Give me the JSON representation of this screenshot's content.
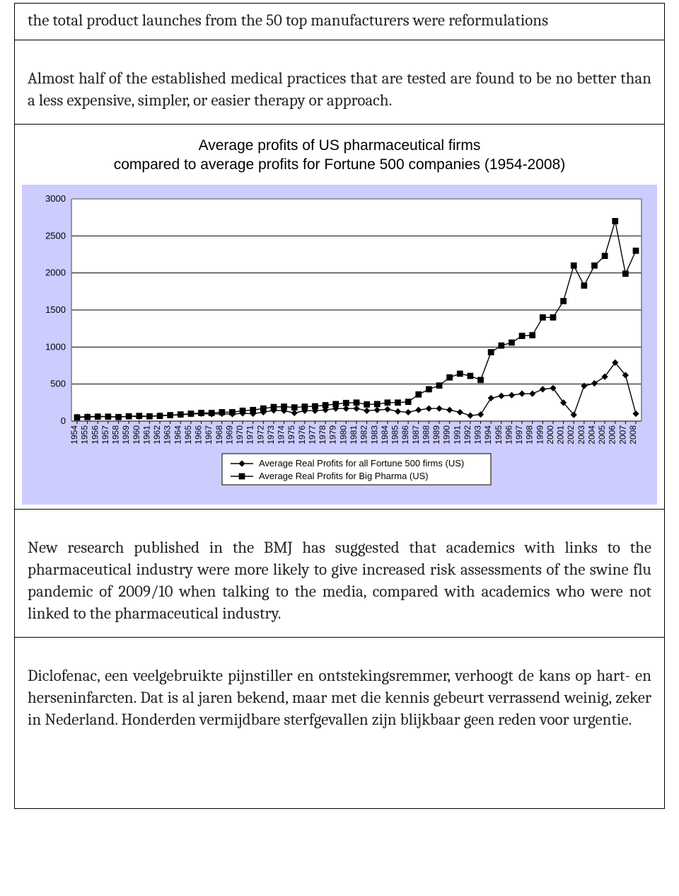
{
  "rows": {
    "r1": "the total product launches from the 50 top manufacturers were reformulations",
    "r2": "Almost half of the established medical practices that are tested are found to be no better than a less expensive, simpler, or easier therapy or approach.",
    "r4": "New research published in the BMJ has suggested that academics with links to the pharmaceutical industry were more likely to give increased risk assessments of the swine flu pandemic of 2009/10 when talking to the media, compared with academics who were not linked to the pharmaceutical industry.",
    "r5": "Diclofenac, een veelgebruikte pijnstiller en ontstekingsremmer, verhoogt de kans op hart- en herseninfarcten. Dat is al jaren bekend, maar met die kennis gebeurt verrassend weinig, zeker in Nederland. Honderden vermijdbare sterfgevallen zijn blijkbaar geen reden voor urgentie."
  },
  "chart": {
    "type": "line",
    "title_line1": "Average profits of US pharmaceutical firms",
    "title_line2": "compared to average profits for Fortune 500 companies (1954-2008)",
    "title_fontsize": 21,
    "background_color": "#ccccff",
    "plot_background": "#ffffff",
    "grid_color": "#000000",
    "line_color": "#000000",
    "label_fontsize_y": 13,
    "label_fontsize_x": 12,
    "legend_fontsize": 13,
    "ylim": [
      0,
      3000
    ],
    "ytick_step": 500,
    "yticks": [
      0,
      500,
      1000,
      1500,
      2000,
      2500,
      3000
    ],
    "x_years": [
      1954,
      1955,
      1956,
      1957,
      1958,
      1959,
      1960,
      1961,
      1962,
      1963,
      1964,
      1965,
      1966,
      1967,
      1968,
      1969,
      1970,
      1971,
      1972,
      1973,
      1974,
      1975,
      1976,
      1977,
      1978,
      1979,
      1980,
      1981,
      1982,
      1983,
      1984,
      1985,
      1986,
      1987,
      1988,
      1989,
      1990,
      1991,
      1992,
      1993,
      1994,
      1995,
      1996,
      1997,
      1998,
      1999,
      2000,
      2001,
      2002,
      2003,
      2004,
      2005,
      2006,
      2007,
      2008
    ],
    "series": [
      {
        "name": "Average Real Profits for all Fortune 500 firms (US)",
        "marker": "diamond",
        "marker_size": 6,
        "values": [
          55,
          60,
          65,
          60,
          55,
          65,
          60,
          65,
          75,
          80,
          85,
          95,
          100,
          95,
          100,
          95,
          105,
          100,
          120,
          145,
          140,
          110,
          140,
          140,
          150,
          170,
          170,
          170,
          140,
          150,
          160,
          130,
          120,
          150,
          170,
          170,
          150,
          120,
          75,
          90,
          310,
          340,
          350,
          370,
          370,
          430,
          445,
          250,
          85,
          475,
          510,
          600,
          790,
          620,
          100
        ]
      },
      {
        "name": "Average Real Profits for Big Pharma (US)",
        "marker": "square",
        "marker_size": 7,
        "values": [
          50,
          55,
          60,
          60,
          55,
          65,
          70,
          65,
          70,
          80,
          90,
          100,
          110,
          110,
          120,
          120,
          140,
          150,
          170,
          190,
          195,
          185,
          195,
          200,
          215,
          230,
          245,
          250,
          225,
          230,
          250,
          250,
          260,
          360,
          430,
          480,
          590,
          640,
          610,
          555,
          930,
          1020,
          1060,
          1150,
          1160,
          1400,
          1400,
          1620,
          2100,
          1830,
          2100,
          2230,
          2700,
          1990,
          2300
        ]
      }
    ],
    "legend_border_color": "#000000",
    "axis_line_color": "#808080",
    "line_width": 1.4
  }
}
